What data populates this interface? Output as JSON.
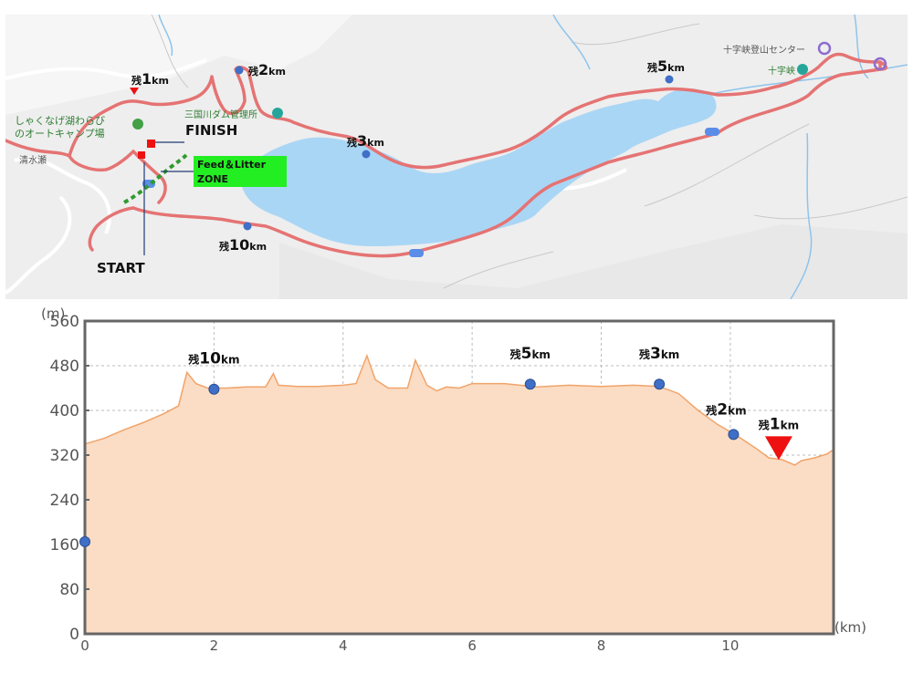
{
  "map": {
    "places": {
      "camp_line1": "しゃくなげ湖わらび",
      "camp_line2": "のオートキャンプ場",
      "dam": "三国川ダム管理所",
      "center": "十字峡登山センター",
      "jujikyo": "十字峡",
      "shimizuse": "清水瀬"
    },
    "labels": {
      "finish": "FINISH",
      "start": "START",
      "zone_line1": "Feed＆Litter",
      "zone_line2": "ZONE"
    },
    "markers": [
      {
        "id": "r1",
        "prefix": "残",
        "num": "1",
        "unit": "km"
      },
      {
        "id": "r2",
        "prefix": "残",
        "num": "2",
        "unit": "km"
      },
      {
        "id": "r3",
        "prefix": "残",
        "num": "3",
        "unit": "km"
      },
      {
        "id": "r5",
        "prefix": "残",
        "num": "5",
        "unit": "km"
      },
      {
        "id": "r10",
        "prefix": "残",
        "num": "10",
        "unit": "km"
      }
    ],
    "colors": {
      "route": "#e57373",
      "water": "#aad6f5",
      "zone": "#2e9b2e",
      "zone_bg": "#22ee22",
      "marker": "#3f6fc6",
      "red": "#ee1111"
    }
  },
  "chart_data": {
    "type": "area",
    "xlabel": "(km)",
    "ylabel": "(m)",
    "xlim": [
      0,
      11.6
    ],
    "ylim": [
      0,
      560
    ],
    "x_ticks": [
      0,
      2,
      4,
      6,
      8,
      10
    ],
    "y_ticks": [
      0,
      80,
      160,
      240,
      320,
      400,
      480,
      560
    ],
    "grid": true,
    "fill_color": "#fbdcc4",
    "line_color": "#f0a46a",
    "profile": [
      [
        0,
        340
      ],
      [
        0.3,
        350
      ],
      [
        0.6,
        365
      ],
      [
        0.9,
        378
      ],
      [
        1.2,
        393
      ],
      [
        1.45,
        408
      ],
      [
        1.58,
        468
      ],
      [
        1.72,
        448
      ],
      [
        1.9,
        440
      ],
      [
        2.2,
        440
      ],
      [
        2.5,
        442
      ],
      [
        2.8,
        442
      ],
      [
        2.92,
        466
      ],
      [
        3.0,
        445
      ],
      [
        3.3,
        443
      ],
      [
        3.6,
        443
      ],
      [
        4.0,
        445
      ],
      [
        4.2,
        448
      ],
      [
        4.37,
        498
      ],
      [
        4.5,
        455
      ],
      [
        4.7,
        440
      ],
      [
        5.0,
        440
      ],
      [
        5.12,
        490
      ],
      [
        5.3,
        445
      ],
      [
        5.45,
        435
      ],
      [
        5.6,
        442
      ],
      [
        5.8,
        440
      ],
      [
        6.0,
        448
      ],
      [
        6.5,
        448
      ],
      [
        7.0,
        442
      ],
      [
        7.5,
        445
      ],
      [
        8.0,
        443
      ],
      [
        8.5,
        445
      ],
      [
        8.9,
        443
      ],
      [
        9.2,
        430
      ],
      [
        9.5,
        400
      ],
      [
        9.8,
        375
      ],
      [
        10.1,
        355
      ],
      [
        10.4,
        332
      ],
      [
        10.6,
        315
      ],
      [
        10.8,
        312
      ],
      [
        11.0,
        302
      ],
      [
        11.1,
        310
      ],
      [
        11.3,
        315
      ],
      [
        11.5,
        322
      ],
      [
        11.6,
        330
      ]
    ],
    "points": [
      {
        "x": 0,
        "y": 165
      },
      {
        "x": 2.0,
        "y": 438,
        "label": {
          "prefix": "残",
          "num": "10",
          "unit": "km"
        }
      },
      {
        "x": 6.9,
        "y": 447,
        "label": {
          "prefix": "残",
          "num": "5",
          "unit": "km"
        }
      },
      {
        "x": 8.9,
        "y": 447,
        "label": {
          "prefix": "残",
          "num": "3",
          "unit": "km"
        }
      },
      {
        "x": 10.05,
        "y": 357,
        "label": {
          "prefix": "残",
          "num": "2",
          "unit": "km"
        }
      }
    ],
    "triangle": {
      "x": 10.75,
      "y": 334,
      "label": {
        "prefix": "残",
        "num": "1",
        "unit": "km"
      }
    }
  }
}
